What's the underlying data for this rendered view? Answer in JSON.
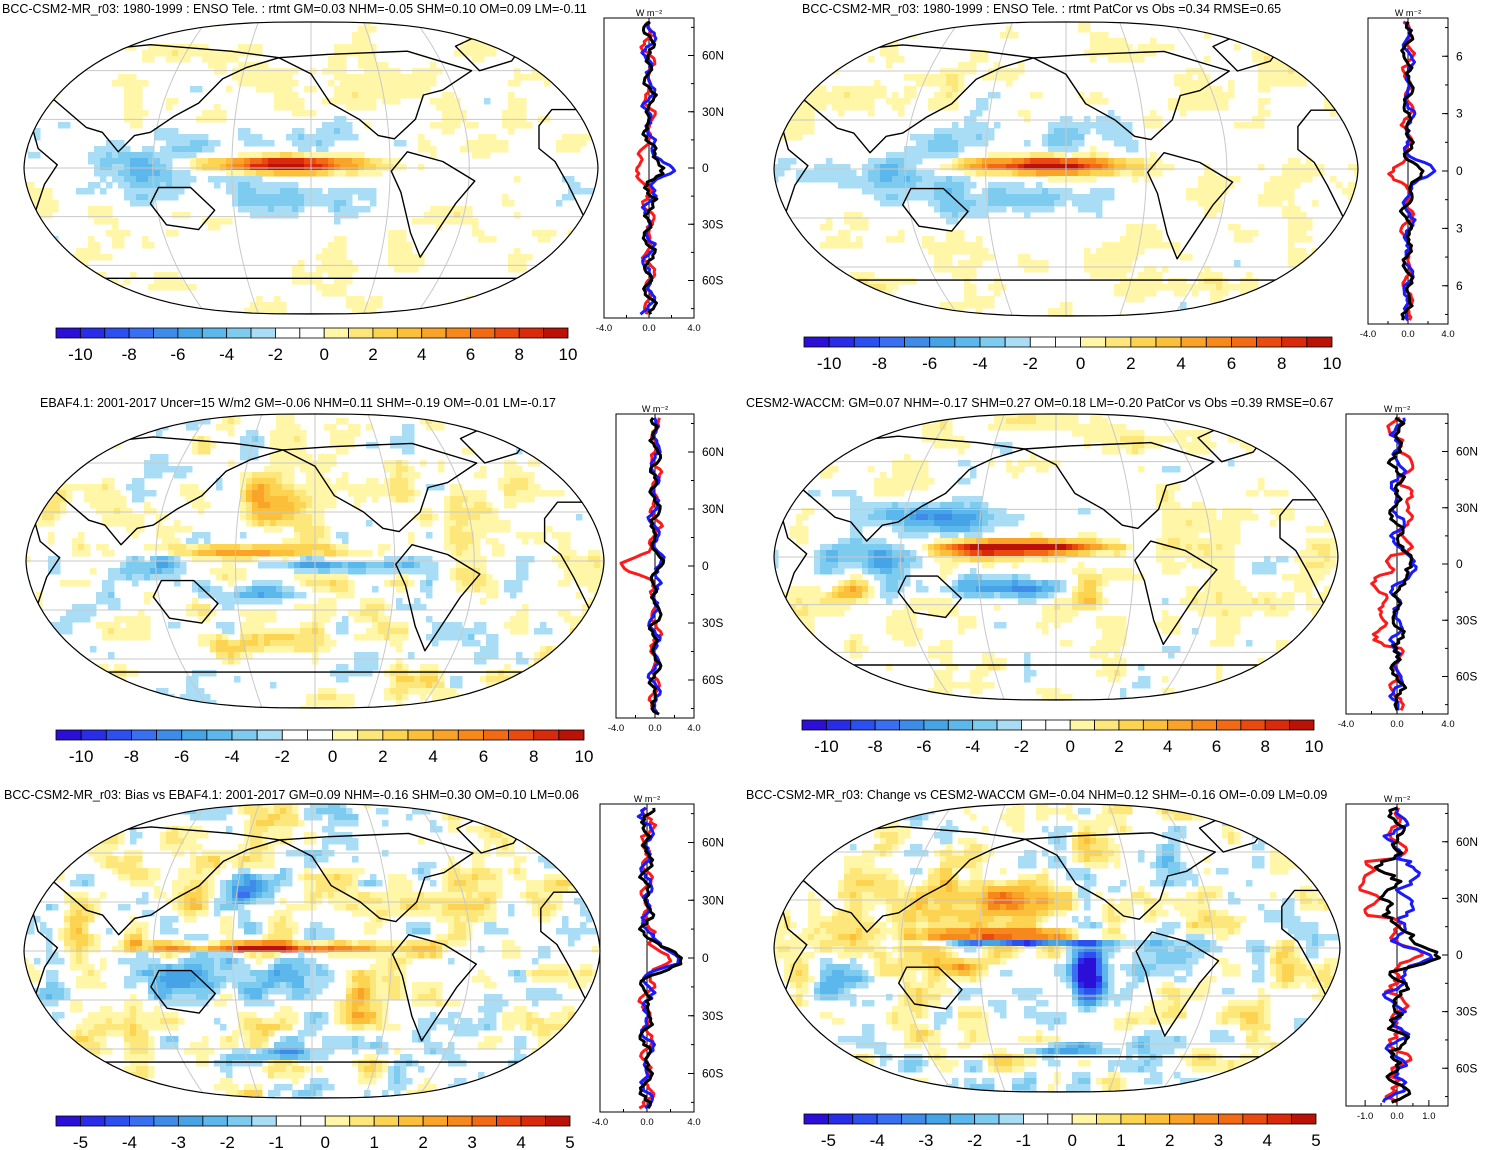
{
  "units_label": "W m⁻²",
  "profile_lat_labels": [
    "60N",
    "30N",
    "0",
    "30S",
    "60S"
  ],
  "profile_lat_labels_truncated": [
    "6",
    "3",
    "0",
    "3",
    "6"
  ],
  "colors": {
    "ocean_bg": "#ffffff",
    "line_model": "#ff1a1a",
    "line_obs": "#1a1aff",
    "line_diff": "#000000",
    "grid": "#c8c8c8"
  },
  "chart_data": [
    {
      "type": "heatmap",
      "title": "BCC-CSM2-MR_r03: 1980-1999 : ENSO Tele. : rtmt GM=0.03 NHM=-0.05 SHM=0.10 OM=0.09 LM=-0.11",
      "pattern": "enso_pos",
      "colorbar": {
        "ticks": [
          "-10",
          "-8",
          "-6",
          "-4",
          "-2",
          "0",
          "2",
          "4",
          "6",
          "8",
          "10"
        ],
        "range": [
          -11,
          11
        ]
      },
      "profile": {
        "xticks": [
          "-4.0",
          "0.0",
          "4.0"
        ],
        "xrange": [
          -4,
          4
        ],
        "lat_labels": "full"
      }
    },
    {
      "type": "heatmap",
      "title": "BCC-CSM2-MR_r03: 1980-1999 : ENSO Tele. : rtmt PatCor vs Obs =0.34 RMSE=0.65",
      "pattern": "enso_pos",
      "colorbar": {
        "ticks": [
          "-10",
          "-8",
          "-6",
          "-4",
          "-2",
          "0",
          "2",
          "4",
          "6",
          "8",
          "10"
        ],
        "range": [
          -11,
          11
        ]
      },
      "profile": {
        "xticks": [
          "-4.0",
          "0.0",
          "4.0"
        ],
        "xrange": [
          -4,
          4
        ],
        "lat_labels": "truncated"
      }
    },
    {
      "type": "heatmap",
      "title": "EBAF4.1: 2001-2017 Uncer=15 W/m2 GM=-0.06 NHM=0.11 SHM=-0.19 OM=-0.01 LM=-0.17",
      "pattern": "obs",
      "colorbar": {
        "ticks": [
          "-10",
          "-8",
          "-6",
          "-4",
          "-2",
          "0",
          "2",
          "4",
          "6",
          "8",
          "10"
        ],
        "range": [
          -11,
          11
        ]
      },
      "profile": {
        "xticks": [
          "-4.0",
          "0.0",
          "4.0"
        ],
        "xrange": [
          -4,
          4
        ],
        "lat_labels": "full"
      }
    },
    {
      "type": "heatmap",
      "title": "CESM2-WACCM: GM=0.07 NHM=-0.17 SHM=0.27 OM=0.18 LM=-0.20 PatCor vs Obs =0.39 RMSE=0.67",
      "pattern": "cesm",
      "colorbar": {
        "ticks": [
          "-10",
          "-8",
          "-6",
          "-4",
          "-2",
          "0",
          "2",
          "4",
          "6",
          "8",
          "10"
        ],
        "range": [
          -11,
          11
        ]
      },
      "profile": {
        "xticks": [
          "-4.0",
          "0.0",
          "4.0"
        ],
        "xrange": [
          -4,
          4
        ],
        "lat_labels": "full"
      }
    },
    {
      "type": "heatmap",
      "title": "BCC-CSM2-MR_r03: Bias vs EBAF4.1: 2001-2017 GM=0.09 NHM=-0.16 SHM=0.30 OM=0.10 LM=0.06",
      "pattern": "bias",
      "colorbar": {
        "ticks": [
          "-5",
          "-4",
          "-3",
          "-2",
          "-1",
          "0",
          "1",
          "2",
          "3",
          "4",
          "5"
        ],
        "range": [
          -5.5,
          5.5
        ]
      },
      "profile": {
        "xticks": [
          "-4.0",
          "0.0",
          "4.0"
        ],
        "xrange": [
          -4,
          4
        ],
        "lat_labels": "full"
      }
    },
    {
      "type": "heatmap",
      "title": "BCC-CSM2-MR_r03: Change vs CESM2-WACCM GM=-0.04 NHM=0.12 SHM=-0.16 OM=-0.09 LM=0.09",
      "pattern": "change",
      "colorbar": {
        "ticks": [
          "-5",
          "-4",
          "-3",
          "-2",
          "-1",
          "0",
          "1",
          "2",
          "3",
          "4",
          "5"
        ],
        "range": [
          -5.5,
          5.5
        ]
      },
      "profile": {
        "xticks": [
          "-1.0",
          "0.0",
          "1.0"
        ],
        "xrange": [
          -1.6,
          1.6
        ],
        "lat_labels": "full"
      }
    }
  ]
}
